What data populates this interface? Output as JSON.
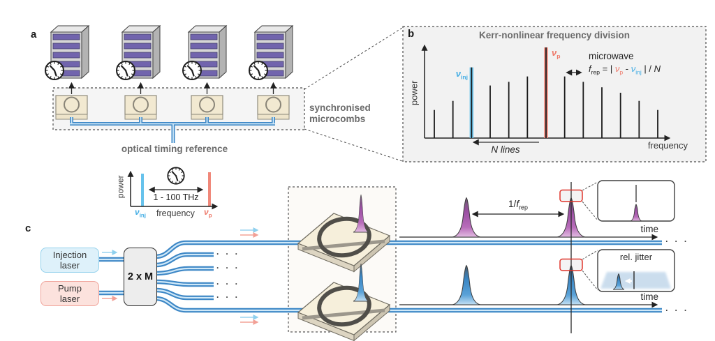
{
  "figure": {
    "panel_a": {
      "label": "a",
      "microcombs_label": "synchronised\nmicrocombs",
      "timing_reference_label": "optical timing reference"
    },
    "panel_b": {
      "label": "b",
      "title": "Kerr-nonlinear frequency division",
      "ylabel": "power",
      "xlabel": "frequency",
      "microwave_label": "microwave",
      "n_lines_label": "N lines",
      "nu": "ν",
      "inj_sub": "inj",
      "p_sub": "p",
      "equation": {
        "f": "f",
        "rep": "rep",
        "mid": " = | ",
        "minus": " - ",
        "end": " | / ",
        "N": "N"
      }
    },
    "reference_spectrum": {
      "ylabel": "power",
      "xlabel": "frequency",
      "span_label": "1 - 100 THz",
      "nu": "ν",
      "inj_sub": "inj",
      "p_sub": "p"
    },
    "panel_c": {
      "label": "c",
      "injection_laser_label": "Injection\nlaser",
      "pump_laser_label": "Pump\nlaser",
      "splitter_label": "2 x M",
      "rep_period_prefix": "1/",
      "rep_f": "f",
      "rep_sub": "rep",
      "time_label": "time",
      "jitter_label": "rel. jitter",
      "ellipsis": "· · ·"
    }
  },
  "chart_data": {
    "type": "line-spectrum (optical frequency comb)",
    "title": "Kerr-nonlinear frequency division",
    "xlabel": "frequency",
    "ylabel": "power",
    "comb_line_relative_heights": [
      0.31,
      0.41,
      0.78,
      0.58,
      0.62,
      0.68,
      1.0,
      0.68,
      0.62,
      0.56,
      0.5,
      0.41,
      0.31
    ],
    "injected_line_index": 2,
    "pump_line_index": 6,
    "annotations": [
      "νinj marks the injection line",
      "νp marks the pump line",
      "microwave frep = | νp - νinj | / N",
      "N lines between injection and pump",
      "reference spectrum span: 1 - 100 THz"
    ]
  },
  "colors": {
    "injection_blue": "#45aee5",
    "pump_red": "#ee7a6b",
    "waveguide_blue": "#3d87c6",
    "waveguide_core": "#cfe8f8",
    "pulse_purple": "#a75cab",
    "pulse_blue": "#3f8cc9",
    "label_gray": "#6b6b6b",
    "panel_bg": "#f2f2f2",
    "chip_beige": "#f2e9d1",
    "server_purple": "#7164ad",
    "marker_red_box": "#e0352b"
  }
}
